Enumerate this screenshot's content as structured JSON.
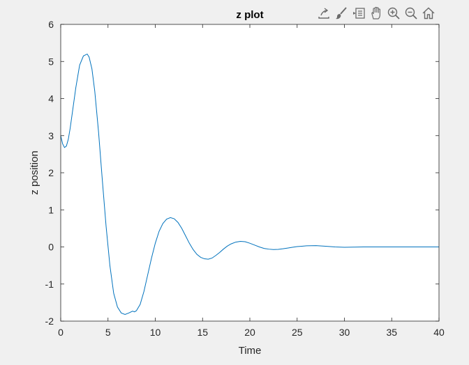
{
  "toolbar": {
    "buttons": [
      {
        "name": "export-icon"
      },
      {
        "name": "brush-icon"
      },
      {
        "name": "datatip-icon"
      },
      {
        "name": "pan-hand-icon"
      },
      {
        "name": "zoom-in-icon"
      },
      {
        "name": "zoom-out-icon"
      },
      {
        "name": "home-icon"
      }
    ]
  },
  "colors": {
    "background": "#f0f0f0",
    "axes_background": "#ffffff",
    "line": "#0072bd",
    "axis": "#262626"
  },
  "chart_data": {
    "type": "line",
    "title": "z plot",
    "xlabel": "Time",
    "ylabel": "z position",
    "xlim": [
      0,
      40
    ],
    "ylim": [
      -2,
      6
    ],
    "xticks": [
      0,
      5,
      10,
      15,
      20,
      25,
      30,
      35,
      40
    ],
    "yticks": [
      -2,
      -1,
      0,
      1,
      2,
      3,
      4,
      5,
      6
    ],
    "grid": false,
    "series": [
      {
        "x": [
          0,
          0.2,
          0.4,
          0.6,
          0.8,
          1.0,
          1.3,
          1.6,
          2.0,
          2.4,
          2.8,
          3.0,
          3.3,
          3.6,
          4.0,
          4.4,
          4.8,
          5.2,
          5.6,
          6.0,
          6.4,
          6.8,
          7.2,
          7.6,
          7.8,
          8.0,
          8.4,
          8.8,
          9.2,
          9.6,
          10.0,
          10.4,
          10.8,
          11.2,
          11.6,
          12.0,
          12.4,
          12.8,
          13.2,
          13.6,
          14.0,
          14.4,
          14.8,
          15.2,
          15.6,
          16.0,
          16.4,
          16.8,
          17.2,
          17.6,
          18.0,
          18.5,
          19.0,
          19.5,
          20.0,
          20.5,
          21.0,
          21.5,
          22.0,
          22.5,
          23.0,
          23.5,
          24.0,
          24.5,
          25.0,
          25.5,
          26.0,
          27.0,
          28.0,
          29.0,
          30.0,
          31.0,
          32.0,
          33.0,
          34.0,
          35.0,
          36.0,
          37.0,
          38.0,
          39.0,
          40.0
        ],
        "y": [
          3.0,
          2.78,
          2.68,
          2.72,
          2.9,
          3.2,
          3.75,
          4.3,
          4.9,
          5.15,
          5.2,
          5.12,
          4.8,
          4.2,
          3.1,
          1.8,
          0.55,
          -0.5,
          -1.25,
          -1.62,
          -1.78,
          -1.82,
          -1.78,
          -1.73,
          -1.75,
          -1.72,
          -1.55,
          -1.2,
          -0.75,
          -0.3,
          0.1,
          0.42,
          0.63,
          0.75,
          0.79,
          0.76,
          0.66,
          0.5,
          0.3,
          0.1,
          -0.07,
          -0.2,
          -0.28,
          -0.32,
          -0.33,
          -0.3,
          -0.23,
          -0.15,
          -0.06,
          0.02,
          0.08,
          0.13,
          0.15,
          0.14,
          0.1,
          0.05,
          0.0,
          -0.04,
          -0.06,
          -0.07,
          -0.065,
          -0.05,
          -0.03,
          -0.01,
          0.01,
          0.02,
          0.03,
          0.035,
          0.02,
          0.0,
          -0.01,
          -0.005,
          0.0,
          0.0,
          0.0,
          0.0,
          0.0,
          0.0,
          0.0,
          0.0,
          0.0
        ]
      }
    ]
  }
}
